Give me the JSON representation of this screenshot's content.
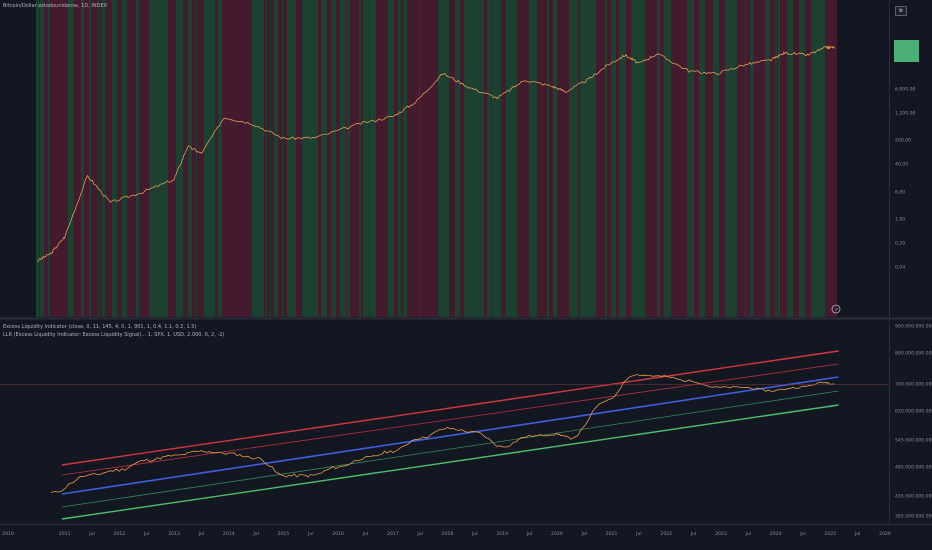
{
  "price_pane": {
    "title": "Bitcoin/Dollar estadounidense, 1D, INDEX",
    "settings_icon": "settings-icon",
    "axis_ticks": [
      "6.000,00",
      "1.200,00",
      "200,00",
      "40,00",
      "6,00",
      "1,00",
      "0,20",
      "0,04"
    ],
    "last_price_tag": "",
    "colors": {
      "bullish_bg": "#1f4632",
      "bearish_bg": "#4a1c30",
      "price_line": "#f5a65b"
    }
  },
  "indicator_pane": {
    "legend": [
      "Excess Liquidity Indicator (close, 0, 11, 145, 4, 0, 1, 901, 1, 0.4, 1.1, 0.2, 1.5)",
      "LLR (Excess Liquidity Indicator: Excess Liquidity Signal)... 1, SPX, 1, USD, 2.000, 0, 2, -2)"
    ],
    "axis_ticks": [
      "900.000.000.000000",
      "800.000.000.000000",
      "700.000.000.000000",
      "620.000.000.000000",
      "545.000.000.000000",
      "485.000.000.000000",
      "435.000.000.000000",
      "385.000.000.000000"
    ],
    "colors": {
      "upper_band_outer": "#d2373f",
      "upper_band_inner": "#b8313a",
      "midline": "#3d5fe0",
      "lower_band_inner": "#2f8a55",
      "lower_band_outer": "#4cbf6a",
      "indicator": "#e99a4a",
      "ref_line": "#7a3a3a"
    }
  },
  "x_axis_ticks": [
    "2010",
    "2011",
    "Jul",
    "2012",
    "Jul",
    "2013",
    "Jul",
    "2014",
    "Jul",
    "2015",
    "Jul",
    "2016",
    "Jul",
    "2017",
    "Jul",
    "2018",
    "Jul",
    "2019",
    "Jul",
    "2020",
    "Jul",
    "2021",
    "Jul",
    "2022",
    "Jul",
    "2023",
    "Jul",
    "2024",
    "Jul",
    "2025",
    "Jul",
    "2026"
  ],
  "chart_data": {
    "type": "line",
    "title": "Bitcoin/Dollar estadounidense, 1D, INDEX",
    "y_scale": "log",
    "series": [
      {
        "name": "Bitcoin/Dollar estadounidense",
        "x": [
          "2010-07",
          "2010-10",
          "2011-01",
          "2011-06",
          "2011-11",
          "2012-06",
          "2013-01",
          "2013-04",
          "2013-07",
          "2013-12",
          "2014-06",
          "2015-01",
          "2015-08",
          "2016-06",
          "2017-01",
          "2017-06",
          "2017-12",
          "2018-06",
          "2018-12",
          "2019-06",
          "2019-12",
          "2020-03",
          "2020-08",
          "2020-12",
          "2021-04",
          "2021-07",
          "2021-11",
          "2022-06",
          "2022-12",
          "2023-06",
          "2023-12",
          "2024-03",
          "2024-08",
          "2024-12",
          "2025-02"
        ],
        "values": [
          0.06,
          0.1,
          0.3,
          18,
          3,
          6,
          14,
          130,
          80,
          900,
          600,
          220,
          230,
          600,
          950,
          2500,
          17000,
          6500,
          3300,
          11000,
          7200,
          5000,
          11500,
          29000,
          58000,
          33000,
          63000,
          20000,
          16800,
          30000,
          42000,
          68000,
          58000,
          97000,
          98000
        ]
      }
    ],
    "indicator": {
      "name": "Excess Liquidity Indicator",
      "x": [
        "2010-10",
        "2011-06",
        "2012-01",
        "2012-07",
        "2013-01",
        "2013-07",
        "2014-01",
        "2014-07",
        "2015-01",
        "2015-07",
        "2016-01",
        "2016-07",
        "2017-01",
        "2017-07",
        "2018-01",
        "2018-07",
        "2019-01",
        "2019-07",
        "2020-01",
        "2020-04",
        "2020-12",
        "2021-06",
        "2021-12",
        "2022-06",
        "2022-12",
        "2023-06",
        "2023-12",
        "2024-06",
        "2024-12",
        "2025-02"
      ],
      "values": [
        440,
        470,
        480,
        500,
        510,
        520,
        515,
        505,
        470,
        470,
        485,
        505,
        520,
        550,
        575,
        565,
        530,
        555,
        560,
        550,
        650,
        730,
        725,
        710,
        690,
        690,
        680,
        690,
        705,
        700
      ],
      "unit": "billions"
    }
  }
}
